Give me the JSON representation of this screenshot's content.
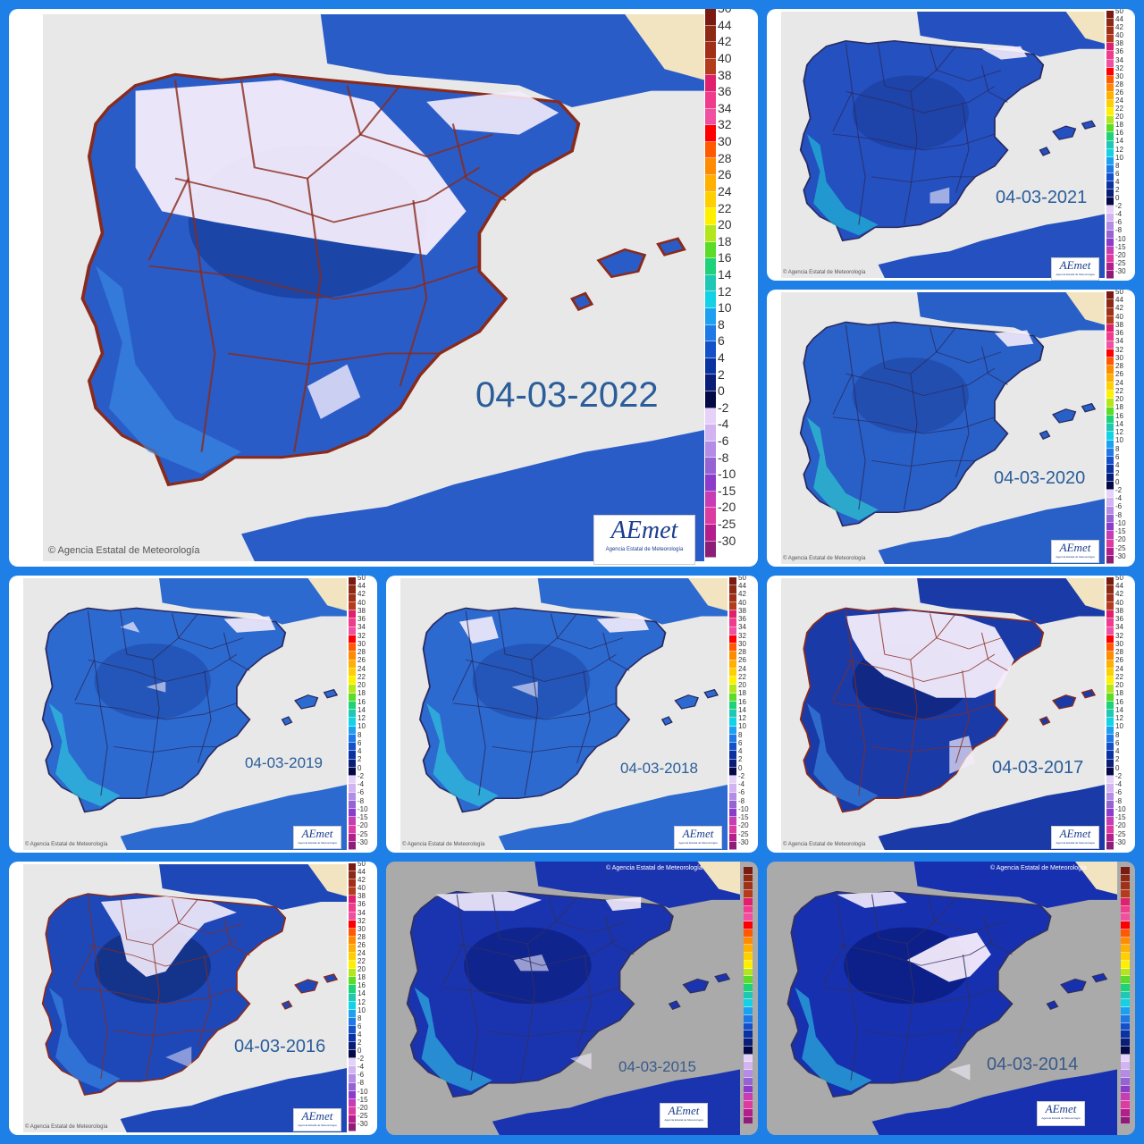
{
  "copyright": "© Agencia Estatal de Meteorología",
  "logo": {
    "text": "AEmet",
    "subtitle": "Agencia Estatal de Meteorología"
  },
  "scale_labels_full": [
    "50",
    "44",
    "42",
    "40",
    "38",
    "36",
    "34",
    "32",
    "30",
    "28",
    "26",
    "24",
    "22",
    "20",
    "18",
    "16",
    "14",
    "12",
    "10",
    "8",
    "6",
    "4",
    "2",
    "0",
    "-2",
    "-4",
    "-6",
    "-8",
    "-10",
    "-15",
    "-20",
    "-25",
    "-30"
  ],
  "scale_colors_full": [
    "#7a1a10",
    "#8c2a14",
    "#a03018",
    "#b43c1c",
    "#e0206e",
    "#f03c8c",
    "#f050a0",
    "#ff0000",
    "#ff5a00",
    "#ff8c00",
    "#ffb000",
    "#ffd000",
    "#fff000",
    "#b4e61e",
    "#5adc28",
    "#1ed27a",
    "#1ec8b4",
    "#14d2e6",
    "#1ea0f0",
    "#1e78e6",
    "#1450c8",
    "#0a32a0",
    "#0a1e78",
    "#050a46",
    "#e6d2f8",
    "#d2b4f0",
    "#b48ce6",
    "#9664d2",
    "#8c3cc8",
    "#c83cb4",
    "#dc3ca0",
    "#b41e8c",
    "#8c1e78"
  ],
  "maps": [
    {
      "date": "04-03-2022",
      "style": "aemet"
    },
    {
      "date": "04-03-2021",
      "style": "aemet"
    },
    {
      "date": "04-03-2020",
      "style": "aemet"
    },
    {
      "date": "04-03-2019",
      "style": "aemet"
    },
    {
      "date": "04-03-2018",
      "style": "aemet"
    },
    {
      "date": "04-03-2017",
      "style": "aemet"
    },
    {
      "date": "04-03-2016",
      "style": "aemet"
    },
    {
      "date": "04-03-2015",
      "style": "old"
    },
    {
      "date": "04-03-2014",
      "style": "old"
    }
  ]
}
